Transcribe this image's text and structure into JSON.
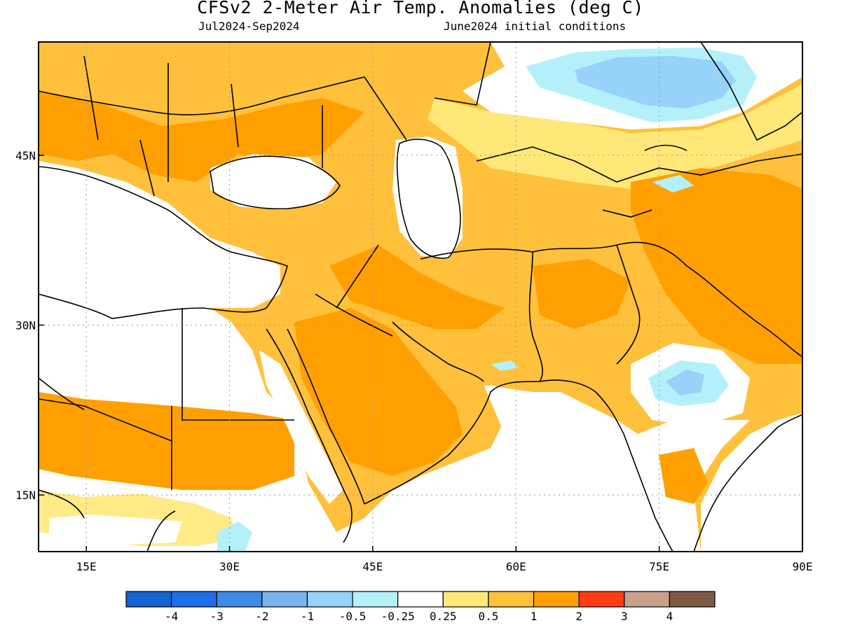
{
  "header": {
    "title": "CFSv2 2-Meter Air Temp. Anomalies (deg C)",
    "period": "Jul2024-Sep2024",
    "conditions": "June2024 initial conditions"
  },
  "map": {
    "lon_range": [
      10,
      90
    ],
    "lat_range": [
      10,
      55
    ],
    "lon_ticks": [
      {
        "value": 15,
        "label": "15E"
      },
      {
        "value": 30,
        "label": "30E"
      },
      {
        "value": 45,
        "label": "45E"
      },
      {
        "value": 60,
        "label": "60E"
      },
      {
        "value": 75,
        "label": "75E"
      },
      {
        "value": 90,
        "label": "90E"
      }
    ],
    "lat_ticks": [
      {
        "value": 15,
        "label": "15N"
      },
      {
        "value": 30,
        "label": "30N"
      },
      {
        "value": 45,
        "label": "45N"
      }
    ],
    "grid": true
  },
  "legend": {
    "colors": [
      "#1464d2",
      "#1e6eeb",
      "#3c8ce6",
      "#78b4f0",
      "#96d2fa",
      "#b4f0fa",
      "#ffffff",
      "#ffe878",
      "#ffc03c",
      "#ffa000",
      "#ff3c14",
      "#c8a08c",
      "#7d5a46"
    ],
    "labels": [
      "-4",
      "-3",
      "-2",
      "-1",
      "-0.5",
      "-0.25",
      "0.25",
      "0.5",
      "1",
      "2",
      "3",
      "4"
    ]
  }
}
